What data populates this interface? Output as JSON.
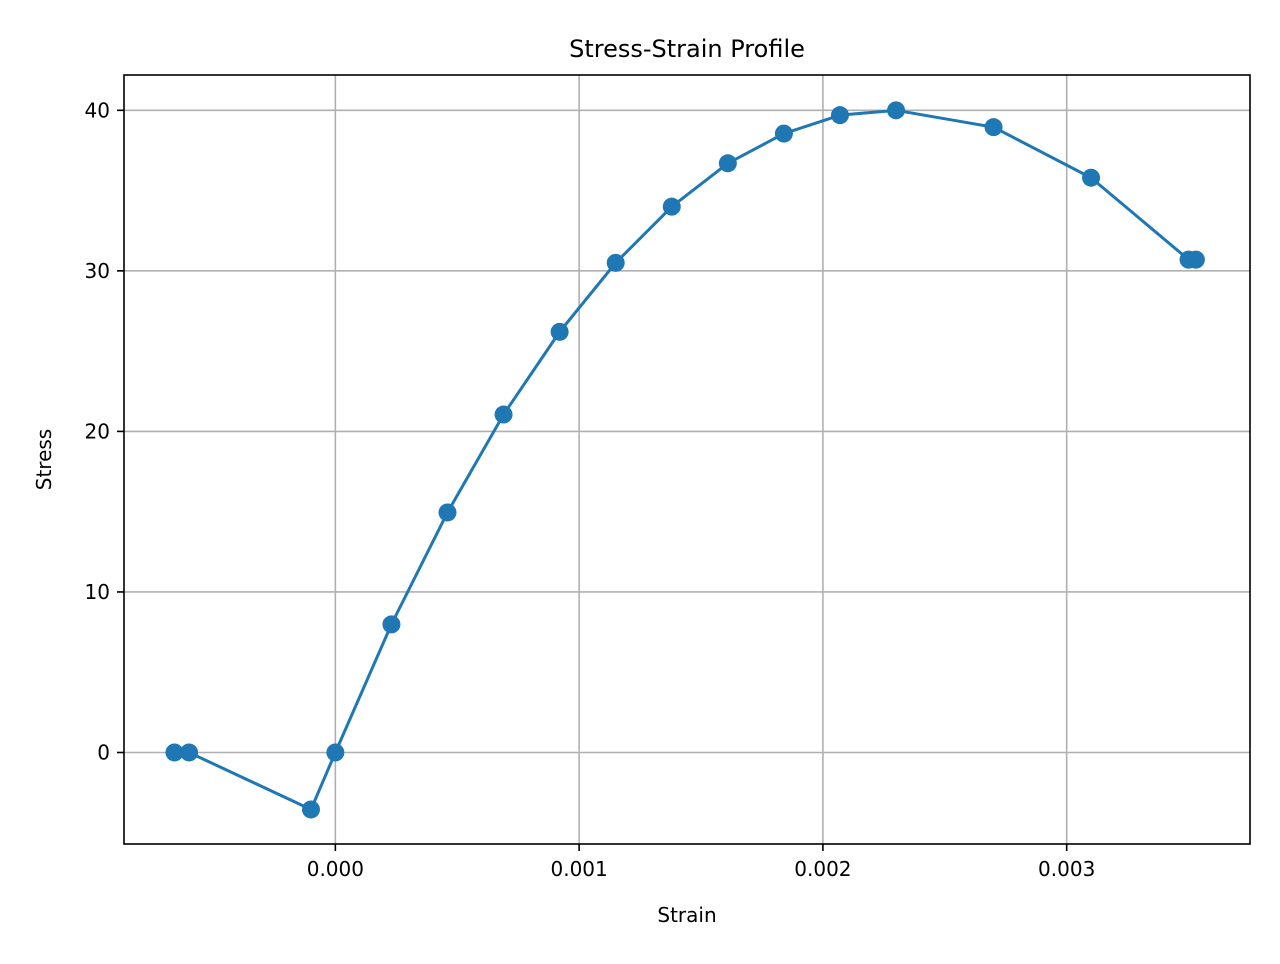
{
  "chart_data": {
    "type": "line",
    "title": "Stress-Strain Profile",
    "xlabel": "Strain",
    "ylabel": "Stress",
    "xlim": [
      -0.000867,
      0.003752
    ],
    "ylim": [
      -5.7,
      42.2
    ],
    "x_ticks": [
      0.0,
      0.001,
      0.002,
      0.003
    ],
    "x_tick_labels": [
      "0.000",
      "0.001",
      "0.002",
      "0.003"
    ],
    "y_ticks": [
      0,
      10,
      20,
      30,
      40
    ],
    "y_tick_labels": [
      "0",
      "10",
      "20",
      "30",
      "40"
    ],
    "grid": true,
    "legend": "none",
    "series": [
      {
        "color": "#1f77b4",
        "marker": "circle",
        "points": [
          {
            "x": -0.00066,
            "y": 0.0
          },
          {
            "x": -0.0006,
            "y": 0.0
          },
          {
            "x": -0.0001,
            "y": -3.55
          },
          {
            "x": 0.0,
            "y": 0.0
          },
          {
            "x": 0.00023,
            "y": 7.98
          },
          {
            "x": 0.00046,
            "y": 14.95
          },
          {
            "x": 0.00069,
            "y": 21.05
          },
          {
            "x": 0.00092,
            "y": 26.2
          },
          {
            "x": 0.00115,
            "y": 30.5
          },
          {
            "x": 0.00138,
            "y": 34.0
          },
          {
            "x": 0.00161,
            "y": 36.7
          },
          {
            "x": 0.00184,
            "y": 38.55
          },
          {
            "x": 0.00207,
            "y": 39.7
          },
          {
            "x": 0.0023,
            "y": 40.0
          },
          {
            "x": 0.0027,
            "y": 38.95
          },
          {
            "x": 0.0031,
            "y": 35.8
          },
          {
            "x": 0.0035,
            "y": 30.7
          },
          {
            "x": 0.00353,
            "y": 30.7
          }
        ]
      }
    ]
  }
}
